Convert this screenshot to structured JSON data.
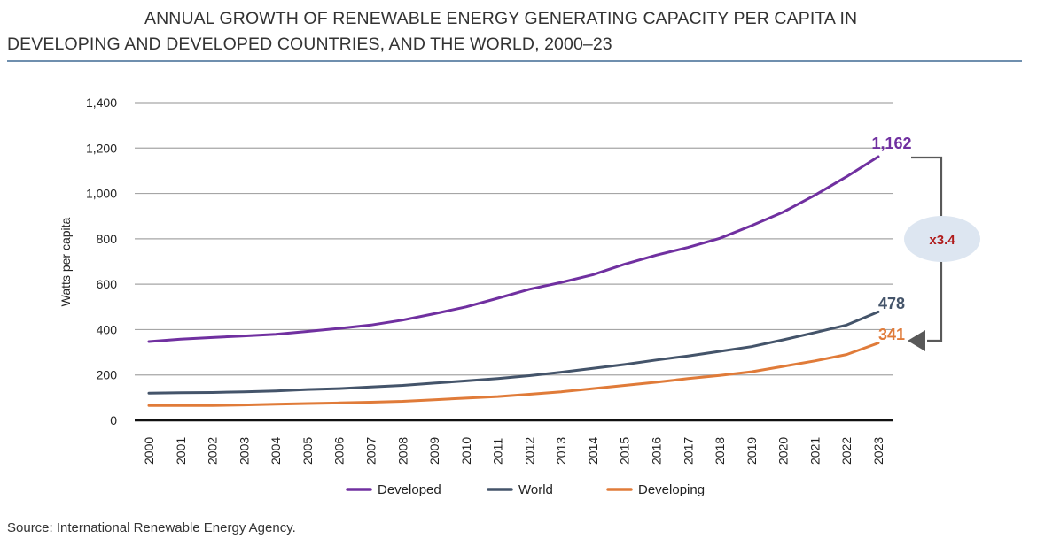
{
  "chart_data": {
    "type": "line",
    "title_line1": "ANNUAL GROWTH OF RENEWABLE ENERGY GENERATING CAPACITY PER CAPITA IN",
    "title_line2": "DEVELOPING AND DEVELOPED COUNTRIES, AND THE WORLD, 2000–23",
    "ylabel": "Watts per capita",
    "xlabel": "",
    "ylim": [
      0,
      1400
    ],
    "yticks": [
      0,
      200,
      400,
      600,
      800,
      1000,
      1200,
      1400
    ],
    "ytick_labels": [
      "0",
      "200",
      "400",
      "600",
      "800",
      "1,000",
      "1,200",
      "1,400"
    ],
    "grid": "horizontal",
    "legend_position": "bottom",
    "x": [
      "2000",
      "2001",
      "2002",
      "2003",
      "2004",
      "2005",
      "2006",
      "2007",
      "2008",
      "2009",
      "2010",
      "2011",
      "2012",
      "2013",
      "2014",
      "2015",
      "2016",
      "2017",
      "2018",
      "2019",
      "2020",
      "2021",
      "2022",
      "2023"
    ],
    "series": [
      {
        "name": "Developed",
        "color": "#7030a0",
        "end_label": "1,162",
        "values": [
          347,
          358,
          365,
          372,
          379,
          392,
          405,
          420,
          442,
          470,
          500,
          538,
          578,
          608,
          642,
          688,
          728,
          762,
          802,
          858,
          918,
          992,
          1074,
          1162
        ]
      },
      {
        "name": "World",
        "color": "#44546a",
        "end_label": "478",
        "values": [
          120,
          122,
          123,
          126,
          130,
          136,
          140,
          147,
          154,
          164,
          174,
          184,
          197,
          212,
          229,
          246,
          266,
          284,
          304,
          325,
          355,
          387,
          420,
          478
        ]
      },
      {
        "name": "Developing",
        "color": "#e07b39",
        "end_label": "341",
        "values": [
          65,
          65,
          65,
          68,
          71,
          74,
          77,
          80,
          84,
          91,
          98,
          105,
          115,
          126,
          140,
          154,
          168,
          184,
          198,
          214,
          238,
          262,
          290,
          341
        ]
      }
    ],
    "annotation": {
      "text": "x3.4",
      "text_color": "#b01c1c",
      "bubble_color": "#dde6f1",
      "arrow_color": "#595959"
    }
  },
  "source": "Source: International Renewable Energy Agency."
}
